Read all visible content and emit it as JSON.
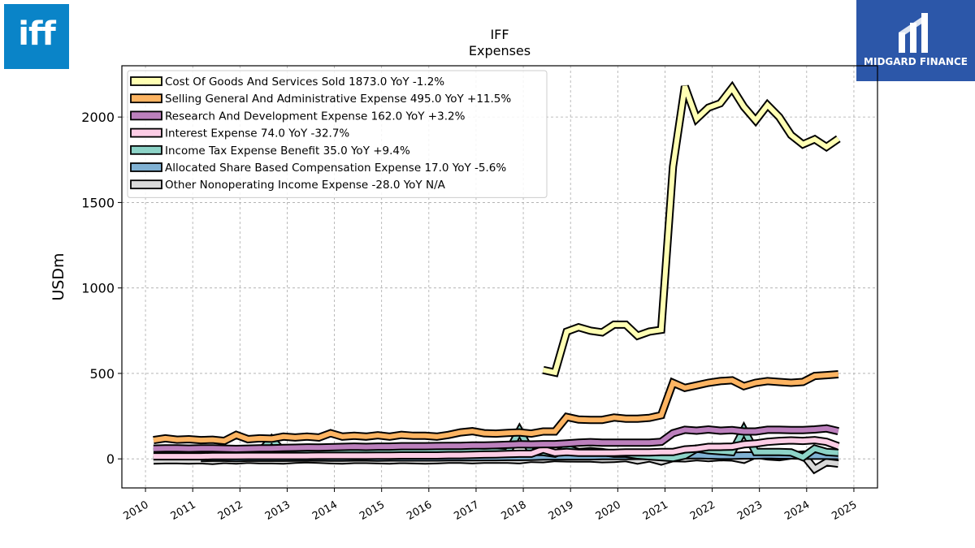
{
  "brand": {
    "left_logo_text": "iff",
    "right_logo_text": "MIDGARD FINANCE",
    "left_color": "#0a84c8",
    "right_color": "#2c57a9"
  },
  "chart_data": {
    "type": "line",
    "title": "IFF",
    "subtitle": "Expenses",
    "xlabel": "",
    "ylabel": "USDm",
    "xlim": [
      2009.5,
      2025.5
    ],
    "ylim": [
      -170,
      2300
    ],
    "yticks": [
      0,
      500,
      1000,
      1500,
      2000
    ],
    "xticks": [
      2010,
      2011,
      2012,
      2013,
      2014,
      2015,
      2016,
      2017,
      2018,
      2019,
      2020,
      2021,
      2022,
      2023,
      2024,
      2025
    ],
    "grid": true,
    "legend_position": "top-left",
    "series": [
      {
        "name": "Cost Of Goods And Services Sold",
        "legend": "Cost Of Goods And Services Sold  1873.0 YoY -1.2%",
        "color": "#ffffb3",
        "x": [
          2018.42,
          2018.67,
          2018.92,
          2019.17,
          2019.42,
          2019.67,
          2019.92,
          2020.17,
          2020.42,
          2020.67,
          2020.92,
          2021.17,
          2021.42,
          2021.67,
          2021.92,
          2022.17,
          2022.42,
          2022.67,
          2022.92,
          2023.17,
          2023.42,
          2023.67,
          2023.92,
          2024.17,
          2024.42,
          2024.67
        ],
        "y": [
          520,
          505,
          745,
          770,
          750,
          740,
          785,
          785,
          720,
          745,
          755,
          1710,
          2180,
          1990,
          2055,
          2080,
          2170,
          2060,
          1980,
          2070,
          2000,
          1895,
          1840,
          1870,
          1825,
          1873
        ]
      },
      {
        "name": "Selling General And Administrative Expense",
        "legend": "Selling General And Administrative Expense  495.0 YoY +11.5%",
        "color": "#fdb462",
        "x": [
          2010.17,
          2010.42,
          2010.67,
          2010.92,
          2011.17,
          2011.42,
          2011.67,
          2011.92,
          2012.17,
          2012.42,
          2012.67,
          2012.92,
          2013.17,
          2013.42,
          2013.67,
          2013.92,
          2014.17,
          2014.42,
          2014.67,
          2014.92,
          2015.17,
          2015.42,
          2015.67,
          2015.92,
          2016.17,
          2016.42,
          2016.67,
          2016.92,
          2017.17,
          2017.42,
          2017.67,
          2017.92,
          2018.17,
          2018.42,
          2018.67,
          2018.92,
          2019.17,
          2019.42,
          2019.67,
          2019.92,
          2020.17,
          2020.42,
          2020.67,
          2020.92,
          2021.17,
          2021.42,
          2021.67,
          2021.92,
          2022.17,
          2022.42,
          2022.67,
          2022.92,
          2023.17,
          2023.42,
          2023.67,
          2023.92,
          2024.17,
          2024.42,
          2024.67
        ],
        "y": [
          110,
          120,
          112,
          115,
          110,
          112,
          105,
          140,
          115,
          120,
          118,
          130,
          125,
          130,
          125,
          150,
          130,
          135,
          130,
          138,
          130,
          140,
          135,
          135,
          130,
          140,
          155,
          162,
          150,
          148,
          152,
          155,
          148,
          160,
          160,
          245,
          230,
          228,
          228,
          242,
          235,
          235,
          240,
          255,
          445,
          415,
          430,
          445,
          455,
          460,
          425,
          445,
          455,
          450,
          445,
          450,
          485,
          490,
          495
        ]
      },
      {
        "name": "Research And Development Expense",
        "legend": "Research And Development Expense  162.0 YoY +3.2%",
        "color": "#bc80bd",
        "x": [
          2010.17,
          2010.42,
          2010.67,
          2010.92,
          2011.17,
          2011.42,
          2011.67,
          2011.92,
          2012.17,
          2012.42,
          2012.67,
          2012.92,
          2013.17,
          2013.42,
          2013.67,
          2013.92,
          2014.17,
          2014.42,
          2014.67,
          2014.92,
          2015.17,
          2015.42,
          2015.67,
          2015.92,
          2016.17,
          2016.42,
          2016.67,
          2016.92,
          2017.17,
          2017.42,
          2017.67,
          2017.92,
          2018.17,
          2018.42,
          2018.67,
          2018.92,
          2019.17,
          2019.42,
          2019.67,
          2019.92,
          2020.17,
          2020.42,
          2020.67,
          2020.92,
          2021.17,
          2021.42,
          2021.67,
          2021.92,
          2022.17,
          2022.42,
          2022.67,
          2022.92,
          2023.17,
          2023.42,
          2023.67,
          2023.92,
          2024.17,
          2024.42,
          2024.67
        ],
        "y": [
          60,
          62,
          62,
          60,
          62,
          62,
          60,
          58,
          60,
          62,
          62,
          64,
          65,
          67,
          66,
          68,
          70,
          72,
          70,
          72,
          72,
          74,
          74,
          74,
          75,
          76,
          76,
          78,
          78,
          80,
          82,
          85,
          84,
          86,
          86,
          90,
          95,
          98,
          95,
          95,
          95,
          95,
          95,
          100,
          150,
          170,
          165,
          172,
          165,
          168,
          160,
          160,
          170,
          170,
          168,
          168,
          172,
          178,
          162
        ]
      },
      {
        "name": "Interest Expense",
        "legend": "Interest Expense  74.0 YoY -32.7%",
        "color": "#fccde5",
        "x": [
          2010.17,
          2010.42,
          2010.67,
          2010.92,
          2011.17,
          2011.42,
          2011.67,
          2011.92,
          2012.17,
          2012.42,
          2012.67,
          2012.92,
          2013.17,
          2013.42,
          2013.67,
          2013.92,
          2014.17,
          2014.42,
          2014.67,
          2014.92,
          2015.17,
          2015.42,
          2015.67,
          2015.92,
          2016.17,
          2016.42,
          2016.67,
          2016.92,
          2017.17,
          2017.42,
          2017.67,
          2017.92,
          2018.17,
          2018.42,
          2018.67,
          2018.92,
          2019.17,
          2019.42,
          2019.67,
          2019.92,
          2020.17,
          2020.42,
          2020.67,
          2020.92,
          2021.17,
          2021.42,
          2021.67,
          2021.92,
          2022.17,
          2022.42,
          2022.67,
          2022.92,
          2023.17,
          2023.42,
          2023.67,
          2023.92,
          2024.17,
          2024.42,
          2024.67
        ],
        "y": [
          15,
          15,
          15,
          15,
          15,
          16,
          16,
          16,
          17,
          17,
          17,
          17,
          17,
          17,
          18,
          18,
          18,
          18,
          18,
          19,
          19,
          20,
          20,
          20,
          20,
          22,
          22,
          24,
          25,
          26,
          28,
          30,
          30,
          55,
          35,
          40,
          35,
          35,
          35,
          35,
          38,
          38,
          38,
          40,
          40,
          55,
          60,
          70,
          70,
          72,
          85,
          90,
          100,
          105,
          108,
          105,
          110,
          100,
          74
        ]
      },
      {
        "name": "Income Tax Expense Benefit",
        "legend": "Income Tax Expense Benefit  35.0 YoY +9.4%",
        "color": "#8dd3c7",
        "x": [
          2010.17,
          2010.42,
          2010.67,
          2010.92,
          2011.17,
          2011.42,
          2011.67,
          2011.92,
          2012.17,
          2012.42,
          2012.67,
          2012.92,
          2013.17,
          2013.42,
          2013.67,
          2013.92,
          2014.17,
          2014.42,
          2014.67,
          2014.92,
          2015.17,
          2015.42,
          2015.67,
          2015.92,
          2016.17,
          2016.42,
          2016.67,
          2016.92,
          2017.17,
          2017.42,
          2017.67,
          2017.92,
          2018.17,
          2018.42,
          2018.67,
          2018.92,
          2019.17,
          2019.42,
          2019.67,
          2019.92,
          2020.17,
          2020.42,
          2020.67,
          2020.92,
          2021.17,
          2021.42,
          2021.67,
          2021.92,
          2022.17,
          2022.42,
          2022.67,
          2022.92,
          2023.17,
          2023.42,
          2023.67,
          2023.92,
          2024.17,
          2024.42,
          2024.67
        ],
        "y": [
          40,
          42,
          44,
          42,
          40,
          40,
          38,
          36,
          40,
          42,
          115,
          42,
          45,
          48,
          45,
          42,
          48,
          50,
          48,
          45,
          48,
          50,
          48,
          45,
          45,
          48,
          45,
          42,
          40,
          42,
          38,
          165,
          40,
          40,
          30,
          60,
          40,
          45,
          40,
          30,
          30,
          20,
          15,
          10,
          5,
          20,
          60,
          50,
          45,
          40,
          170,
          40,
          40,
          40,
          38,
          10,
          60,
          40,
          35
        ]
      },
      {
        "name": "Allocated Share Based Compensation Expense",
        "legend": "Allocated Share Based Compensation Expense  17.0 YoY -5.6%",
        "color": "#80b1d3",
        "x": [
          2011.17,
          2011.42,
          2011.67,
          2011.92,
          2012.17,
          2012.42,
          2012.67,
          2012.92,
          2013.17,
          2013.42,
          2013.67,
          2013.92,
          2014.17,
          2014.42,
          2014.67,
          2014.92,
          2015.17,
          2015.42,
          2015.67,
          2015.92,
          2016.17,
          2016.42,
          2016.67,
          2016.92,
          2017.17,
          2017.42,
          2017.67,
          2017.92,
          2018.17,
          2018.42,
          2018.67,
          2018.92,
          2019.17,
          2019.42,
          2019.67,
          2019.92,
          2020.17,
          2020.42,
          2020.67,
          2020.92,
          2021.17,
          2021.42,
          2021.67,
          2021.92,
          2022.17,
          2022.42,
          2022.67,
          2022.92,
          2023.17,
          2023.42,
          2023.67,
          2023.92,
          2024.17,
          2024.42,
          2024.67
        ],
        "y": [
          5,
          6,
          6,
          5,
          6,
          6,
          7,
          6,
          7,
          7,
          8,
          7,
          7,
          8,
          8,
          7,
          8,
          8,
          8,
          8,
          8,
          9,
          9,
          9,
          10,
          10,
          11,
          11,
          12,
          14,
          14,
          15,
          15,
          15,
          16,
          16,
          16,
          17,
          17,
          18,
          18,
          20,
          22,
          20,
          18,
          18,
          20,
          20,
          22,
          20,
          20,
          18,
          18,
          18,
          17
        ]
      },
      {
        "name": "Other Nonoperating Income Expense",
        "legend": "Other Nonoperating Income Expense  -28.0 YoY N/A",
        "color": "#d9d9d9",
        "x": [
          2010.17,
          2010.42,
          2010.67,
          2010.92,
          2011.17,
          2011.42,
          2011.67,
          2011.92,
          2012.17,
          2012.42,
          2012.67,
          2012.92,
          2013.17,
          2013.42,
          2013.67,
          2013.92,
          2014.17,
          2014.42,
          2014.67,
          2014.92,
          2015.17,
          2015.42,
          2015.67,
          2015.92,
          2016.17,
          2016.42,
          2016.67,
          2016.92,
          2017.17,
          2017.42,
          2017.67,
          2017.92,
          2018.17,
          2018.42,
          2018.67,
          2018.92,
          2019.17,
          2019.42,
          2019.67,
          2019.92,
          2020.17,
          2020.42,
          2020.67,
          2020.92,
          2021.17,
          2021.42,
          2021.67,
          2021.92,
          2022.17,
          2022.42,
          2022.67,
          2022.92,
          2023.17,
          2023.42,
          2023.67,
          2023.92,
          2024.17,
          2024.42,
          2024.67
        ],
        "y": [
          -10,
          -8,
          -8,
          -10,
          -8,
          -12,
          -6,
          -10,
          -5,
          -8,
          -8,
          -10,
          -5,
          -3,
          -5,
          -8,
          -10,
          -6,
          -6,
          -8,
          -10,
          -6,
          -8,
          -10,
          -8,
          -5,
          -5,
          -8,
          -5,
          -4,
          -5,
          -8,
          0,
          -2,
          5,
          3,
          2,
          2,
          -2,
          0,
          5,
          -10,
          3,
          -15,
          5,
          3,
          10,
          5,
          10,
          8,
          -5,
          25,
          15,
          10,
          20,
          25,
          -60,
          -20,
          -28
        ]
      }
    ]
  }
}
